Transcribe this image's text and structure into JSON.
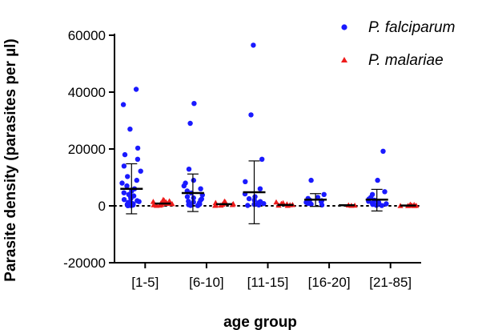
{
  "chart_data": {
    "type": "scatter",
    "title": "",
    "xlabel": "age group",
    "ylabel": "Parasite density (parasites per µl)",
    "categories": [
      "[1-5]",
      "[6-10]",
      "[11-15]",
      "[16-20]",
      "[21-85]"
    ],
    "ylim": [
      -20000,
      60000
    ],
    "yticks": [
      -20000,
      0,
      20000,
      40000,
      60000
    ],
    "grid": false,
    "reference_line": 0,
    "legend_position": "top-right",
    "series": [
      {
        "name": "P. falciparum",
        "color": "#1a1aff",
        "marker": "circle",
        "mean": [
          6000,
          4500,
          4800,
          2200,
          2200
        ],
        "error_low": [
          -2800,
          -2000,
          -6300,
          -200,
          -1800
        ],
        "error_high": [
          14800,
          11200,
          15800,
          4300,
          5800
        ],
        "points": [
          [
            41000,
            35600,
            27000,
            20300,
            18000,
            16400,
            14000,
            12200,
            10300,
            9000,
            8000,
            7000,
            6000,
            5200,
            4600,
            4000,
            3500,
            3000,
            2600,
            2200,
            1800,
            1500,
            1200,
            900,
            700,
            500,
            300,
            200,
            100,
            50
          ],
          [
            36000,
            29000,
            12900,
            9000,
            8000,
            7000,
            6000,
            5200,
            4500,
            3800,
            3200,
            2800,
            2400,
            2000,
            1600,
            1300,
            1000,
            800,
            600,
            400,
            250,
            150,
            80
          ],
          [
            56500,
            32000,
            16400,
            8500,
            6000,
            4200,
            3200,
            2500,
            2000,
            1500,
            1100,
            800,
            500,
            300,
            150
          ],
          [
            9000,
            4000,
            3000,
            2600,
            2000,
            1800,
            1500,
            1200,
            900,
            600,
            300
          ],
          [
            19200,
            9000,
            5000,
            4000,
            3000,
            2400,
            2000,
            1600,
            1200,
            900,
            700,
            500,
            300,
            200,
            100
          ]
        ]
      },
      {
        "name": "P. malariae",
        "color": "#ee1c1c",
        "marker": "triangle",
        "mean": [
          800,
          600,
          300,
          200,
          100
        ],
        "points": [
          [
            2200,
            1900,
            1700,
            1500,
            1300,
            1200,
            1100,
            1000,
            900,
            800,
            700,
            600,
            500,
            400,
            300,
            200,
            100
          ],
          [
            1600,
            1300,
            1100,
            900,
            700,
            500,
            400,
            300,
            200,
            100
          ],
          [
            1300,
            1000,
            800,
            600,
            400,
            300,
            200,
            100
          ],
          [
            250,
            150,
            100
          ],
          [
            500,
            400,
            300,
            200,
            100,
            100,
            50,
            50,
            50
          ]
        ]
      }
    ]
  }
}
